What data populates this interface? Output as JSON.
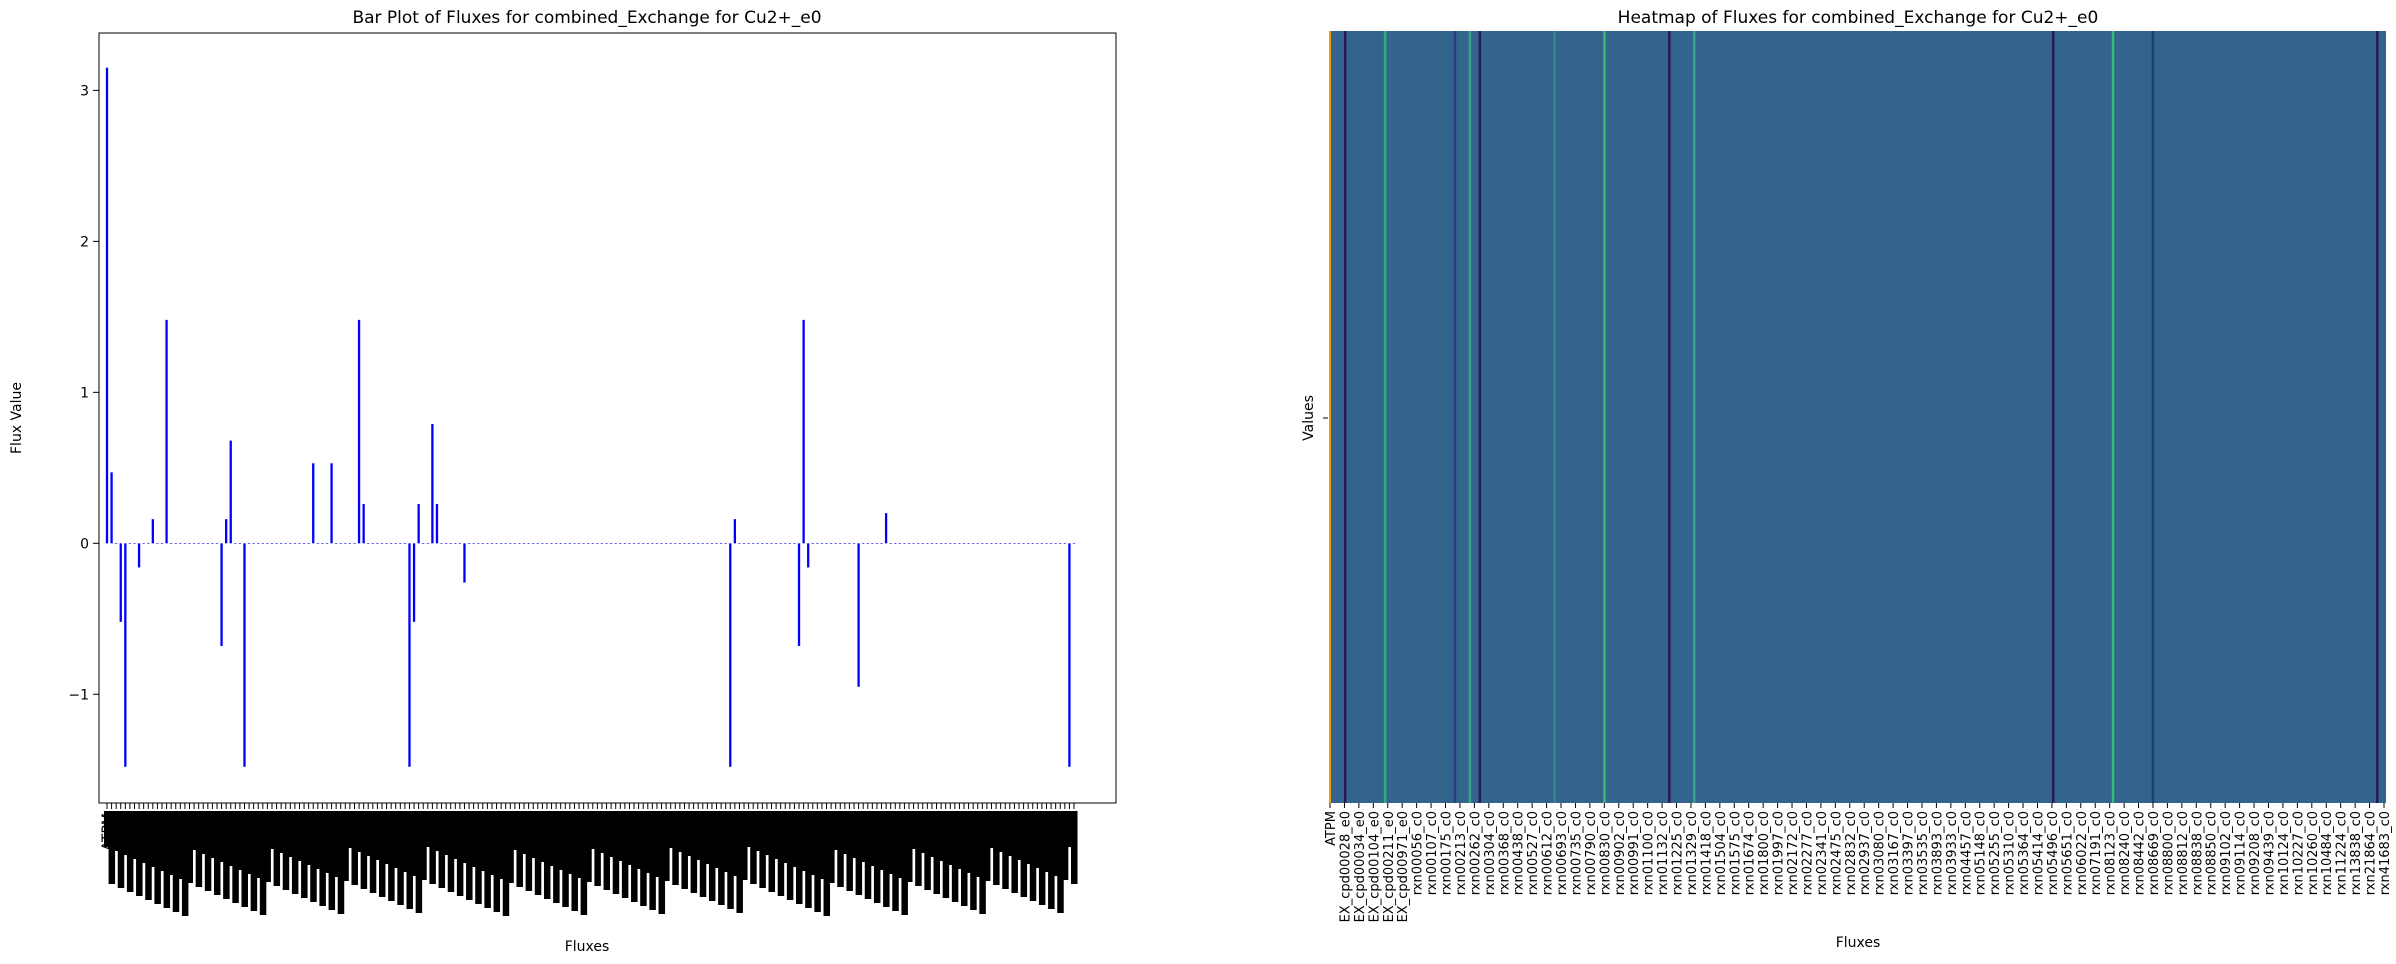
{
  "chart_data": [
    {
      "type": "bar",
      "title": "Bar Plot of Fluxes for combined_Exchange for Cu2+_e0",
      "xlabel": "Fluxes",
      "ylabel": "Flux Value",
      "ylim": [
        -1.72,
        3.38
      ],
      "yticks": [
        -1,
        0,
        1,
        2,
        3
      ],
      "ytick_labels": [
        "−1",
        "0",
        "1",
        "2",
        "3"
      ],
      "bar_color": "#0000ff",
      "legend": "none",
      "tick_note": "x tick labels are dense and overlapping (one per flux) and not legible",
      "first_visible_tick": "ATPM",
      "n_categories": 212,
      "values": [
        3.15,
        0.47,
        0,
        -0.52,
        -1.48,
        0,
        0,
        -0.16,
        0,
        0,
        0.16,
        0,
        0,
        1.48,
        0,
        0,
        0,
        0,
        0,
        0,
        0,
        0,
        0,
        0,
        0,
        -0.68,
        0.16,
        0.68,
        0,
        0,
        -1.48,
        0,
        0,
        0,
        0,
        0,
        0,
        0,
        0,
        0,
        0,
        0,
        0,
        0,
        0,
        0.53,
        0,
        0,
        0,
        0.53,
        0,
        0,
        0,
        0,
        0,
        1.48,
        0.26,
        0,
        0,
        0,
        0,
        0,
        0,
        0,
        0,
        0,
        -1.48,
        -0.52,
        0.26,
        0,
        0,
        0.79,
        0.26,
        0,
        0,
        0,
        0,
        0,
        -0.26,
        0,
        0,
        0,
        0,
        0,
        0,
        0,
        0,
        0,
        0,
        0,
        0,
        0,
        0,
        0,
        0,
        0,
        0,
        0,
        0,
        0,
        0,
        0,
        0,
        0,
        0,
        0,
        0,
        0,
        0,
        0,
        0,
        0,
        0,
        0,
        0,
        0,
        0,
        0,
        0,
        0,
        0,
        0,
        0,
        0,
        0,
        0,
        0,
        0,
        0,
        0,
        0,
        0,
        0,
        0,
        0,
        0,
        -1.48,
        0.16,
        0,
        0,
        0,
        0,
        0,
        0,
        0,
        0,
        0,
        0,
        0,
        0,
        0,
        -0.68,
        1.48,
        -0.16,
        0,
        0,
        0,
        0,
        0,
        0,
        0,
        0,
        0,
        0,
        -0.95,
        0,
        0,
        0,
        0,
        0,
        0.2,
        0,
        0,
        0,
        0,
        0,
        0,
        0,
        0,
        0,
        0,
        0,
        0,
        0,
        0,
        0,
        0,
        0,
        0,
        0,
        0,
        0,
        0,
        0,
        0,
        0,
        0,
        0,
        0,
        0,
        0,
        0,
        0,
        0,
        0,
        0,
        0,
        0,
        0,
        0,
        -1.48,
        0
      ]
    },
    {
      "type": "heatmap",
      "title": "Heatmap of Fluxes for combined_Exchange for Cu2+_e0",
      "xlabel": "Fluxes",
      "ylabel": "Values",
      "rows": [
        ""
      ],
      "colormap": "viridis",
      "n_cells": 212,
      "base_color": "#32648e",
      "column_labels": [
        "ATPM",
        "EX_cpd00028_e0",
        "EX_cpd00034_e0",
        "EX_cpd00104_e0",
        "EX_cpd00211_e0",
        "EX_cpd00971_e0",
        "rxn00056_c0",
        "rxn00107_c0",
        "rxn00175_c0",
        "rxn00213_c0",
        "rxn00262_c0",
        "rxn00304_c0",
        "rxn00368_c0",
        "rxn00438_c0",
        "rxn00527_c0",
        "rxn00612_c0",
        "rxn00693_c0",
        "rxn00735_c0",
        "rxn00790_c0",
        "rxn00830_c0",
        "rxn00902_c0",
        "rxn00991_c0",
        "rxn01100_c0",
        "rxn01132_c0",
        "rxn01225_c0",
        "rxn01329_c0",
        "rxn01418_c0",
        "rxn01504_c0",
        "rxn01575_c0",
        "rxn01674_c0",
        "rxn01800_c0",
        "rxn01997_c0",
        "rxn02172_c0",
        "rxn02277_c0",
        "rxn02341_c0",
        "rxn02475_c0",
        "rxn02832_c0",
        "rxn02937_c0",
        "rxn03080_c0",
        "rxn03167_c0",
        "rxn03397_c0",
        "rxn03535_c0",
        "rxn03893_c0",
        "rxn03933_c0",
        "rxn04457_c0",
        "rxn05148_c0",
        "rxn05255_c0",
        "rxn05310_c0",
        "rxn05364_c0",
        "rxn05414_c0",
        "rxn05496_c0",
        "rxn05651_c0",
        "rxn06022_c0",
        "rxn07191_c0",
        "rxn08123_c0",
        "rxn08240_c0",
        "rxn08442_c0",
        "rxn08669_c0",
        "rxn08800_c0",
        "rxn08812_c0",
        "rxn08838_c0",
        "rxn08850_c0",
        "rxn09102_c0",
        "rxn09114_c0",
        "rxn09208_c0",
        "rxn09439_c0",
        "rxn10124_c0",
        "rxn10227_c0",
        "rxn10260_c0",
        "rxn10484_c0",
        "rxn11224_c0",
        "rxn13838_c0",
        "rxn21864_c0",
        "rxn41683_c0"
      ],
      "color_bands": [
        {
          "cell": 0,
          "color": "#f0a000"
        },
        {
          "cell": 3,
          "color": "#2a1858"
        },
        {
          "cell": 11,
          "color": "#29b176"
        },
        {
          "cell": 25,
          "color": "#2a3d80"
        },
        {
          "cell": 28,
          "color": "#3aa48a"
        },
        {
          "cell": 30,
          "color": "#2a1858"
        },
        {
          "cell": 45,
          "color": "#2e8a8a"
        },
        {
          "cell": 55,
          "color": "#3aba70"
        },
        {
          "cell": 68,
          "color": "#2a1858"
        },
        {
          "cell": 73,
          "color": "#3aa48a"
        },
        {
          "cell": 145,
          "color": "#2a1858"
        },
        {
          "cell": 157,
          "color": "#3aba70"
        },
        {
          "cell": 165,
          "color": "#1e3a78"
        },
        {
          "cell": 210,
          "color": "#2a1858"
        }
      ]
    }
  ]
}
